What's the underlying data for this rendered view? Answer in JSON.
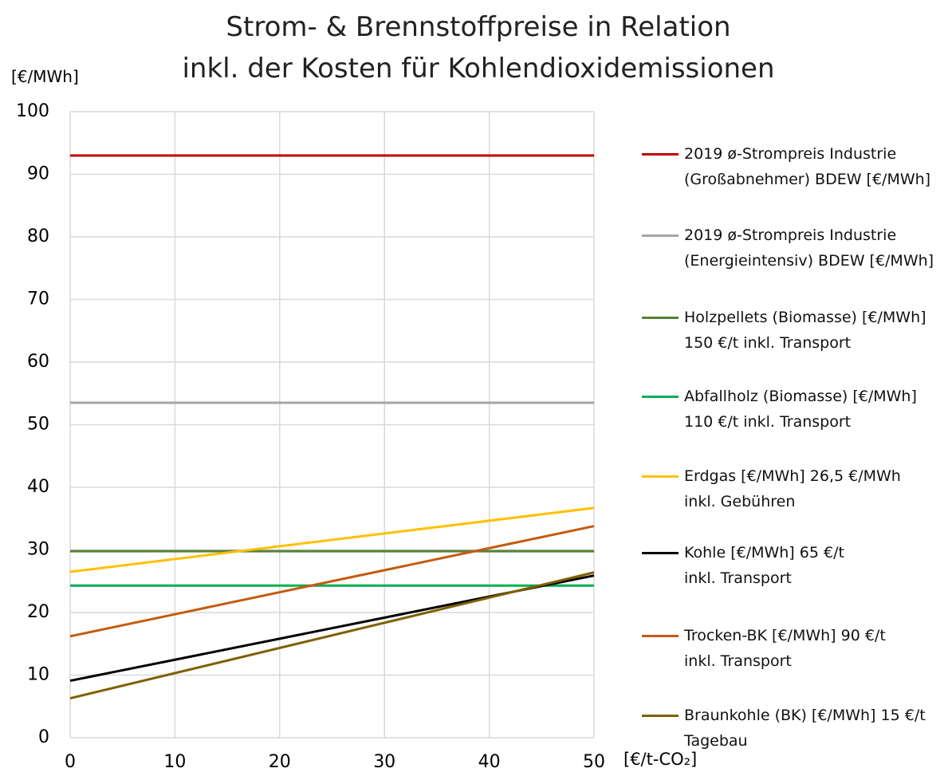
{
  "chart_data": {
    "type": "line",
    "title": "Strom- & Brennstoffpreise in Relation\ninkl. der Kosten für Kohlendioxidemissionen",
    "y_label": "[€/MWh]",
    "x_label": "[€/t-CO₂]",
    "x": [
      0,
      50
    ],
    "xlim": [
      0,
      50
    ],
    "xticks": [
      0,
      10,
      20,
      30,
      40,
      50
    ],
    "ylim": [
      0,
      100
    ],
    "yticks": [
      0,
      10,
      20,
      30,
      40,
      50,
      60,
      70,
      80,
      90,
      100
    ],
    "grid": true,
    "legend": "right",
    "series": [
      {
        "name": "2019 ø-Strompreis Industrie\n(Großabnehmer) BDEW [€/MWh]",
        "color": "#c00000",
        "values": [
          93,
          93
        ]
      },
      {
        "name": "2019 ø-Strompreis Industrie\n(Energieintensiv) BDEW [€/MWh]",
        "color": "#a6a6a6",
        "values": [
          53.5,
          53.5
        ]
      },
      {
        "name": "Holzpellets (Biomasse) [€/MWh]\n150 €/t inkl. Transport",
        "color": "#548235",
        "values": [
          29.8,
          29.8
        ]
      },
      {
        "name": "Abfallholz (Biomasse) [€/MWh]\n110 €/t inkl. Transport",
        "color": "#00b050",
        "values": [
          24.3,
          24.3
        ]
      },
      {
        "name": "Erdgas [€/MWh] 26,5 €/MWh\ninkl. Gebühren",
        "color": "#ffc000",
        "values": [
          26.5,
          36.7
        ]
      },
      {
        "name": "Kohle [€/MWh] 65 €/t\ninkl. Transport",
        "color": "#000000",
        "values": [
          9.1,
          25.9
        ]
      },
      {
        "name": "Trocken-BK [€/MWh] 90 €/t\ninkl. Transport",
        "color": "#c55a11",
        "values": [
          16.2,
          33.8
        ]
      },
      {
        "name": "Braunkohle (BK) [€/MWh] 15 €/t\nTagebau",
        "color": "#7f6000",
        "values": [
          6.3,
          26.4
        ]
      }
    ]
  }
}
